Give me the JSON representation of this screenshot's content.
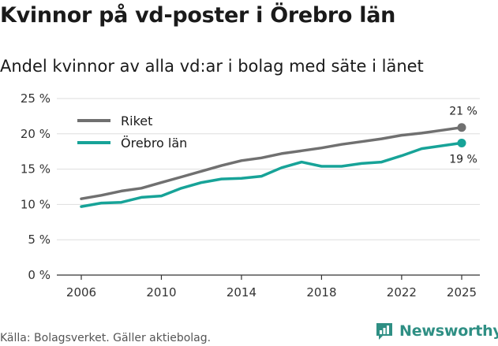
{
  "header": {
    "title": "Kvinnor på vd-poster i Örebro län",
    "subtitle": "Andel kvinnor av alla vd:ar i bolag med säte i länet"
  },
  "footer": {
    "source": "Källa: Bolagsverket. Gäller aktiebolag.",
    "brand": "Newsworthy"
  },
  "colors": {
    "riket": "#707070",
    "orebro": "#17a398",
    "grid": "#dddddd",
    "axis": "#333333",
    "brand": "#2f8f84"
  },
  "chart_data": {
    "type": "line",
    "title": "Kvinnor på vd-poster i Örebro län",
    "subtitle": "Andel kvinnor av alla vd:ar i bolag med säte i länet",
    "x": [
      2006,
      2007,
      2008,
      2009,
      2010,
      2011,
      2012,
      2013,
      2014,
      2015,
      2016,
      2017,
      2018,
      2019,
      2020,
      2021,
      2022,
      2023,
      2024,
      2025
    ],
    "xticks": [
      2006,
      2010,
      2014,
      2018,
      2022,
      2025
    ],
    "xlim": [
      2006,
      2025
    ],
    "ylim": [
      0,
      25
    ],
    "yticks": [
      0,
      5,
      10,
      15,
      20,
      25
    ],
    "ytick_labels": [
      "0 %",
      "5 %",
      "10 %",
      "15 %",
      "20 %",
      "25 %"
    ],
    "grid": true,
    "legend": "top-left",
    "series": [
      {
        "name": "Riket",
        "values": [
          10.8,
          11.3,
          11.9,
          12.3,
          13.1,
          13.9,
          14.7,
          15.5,
          16.2,
          16.6,
          17.2,
          17.6,
          18.0,
          18.5,
          18.9,
          19.3,
          19.8,
          20.1,
          20.5,
          20.9
        ],
        "end_label": "21 %"
      },
      {
        "name": "Örebro län",
        "values": [
          9.7,
          10.2,
          10.3,
          11.0,
          11.2,
          12.3,
          13.1,
          13.6,
          13.7,
          14.0,
          15.2,
          16.0,
          15.4,
          15.4,
          15.8,
          16.0,
          16.9,
          17.9,
          18.3,
          18.7
        ],
        "end_label": "19 %"
      }
    ]
  }
}
